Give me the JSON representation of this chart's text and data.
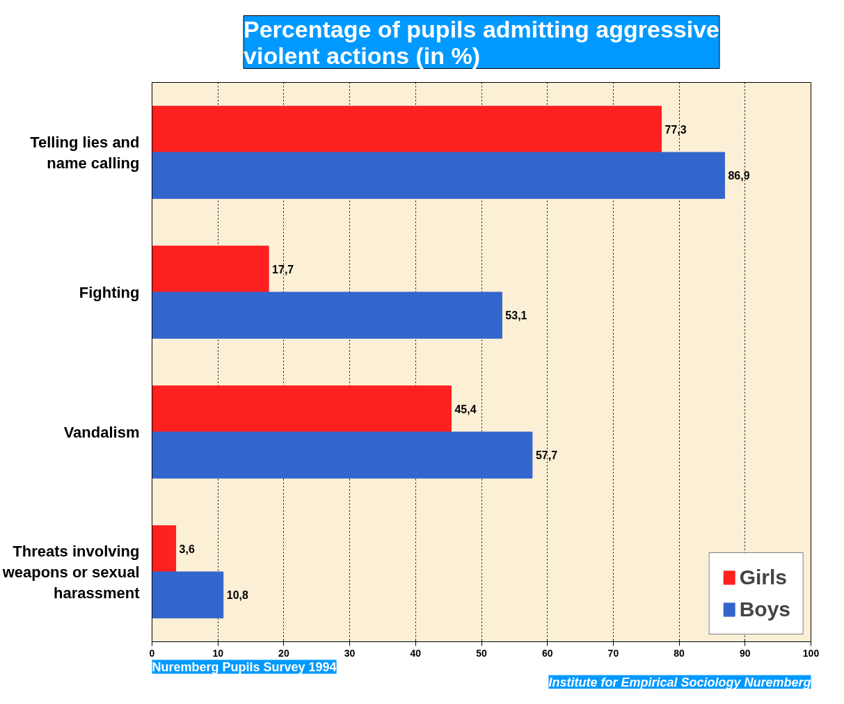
{
  "chart_data": {
    "type": "bar",
    "orientation": "horizontal",
    "title": "Percentage of pupils admitting aggressive violent actions (in %)",
    "categories": [
      "Telling lies and name calling",
      "Fighting",
      "Vandalism",
      "Threats involving weapons or sexual harassment"
    ],
    "series": [
      {
        "name": "Girls",
        "color": "#ff2020",
        "values": [
          77.3,
          17.7,
          45.4,
          3.6
        ],
        "value_labels": [
          "77,3",
          "17,7",
          "45,4",
          "3,6"
        ]
      },
      {
        "name": "Boys",
        "color": "#3366cc",
        "values": [
          86.9,
          53.1,
          57.7,
          10.8
        ],
        "value_labels": [
          "86,9",
          "53,1",
          "57,7",
          "10,8"
        ]
      }
    ],
    "xlim": [
      0,
      100
    ],
    "xticks": [
      0,
      10,
      20,
      30,
      40,
      50,
      60,
      70,
      80,
      90,
      100
    ],
    "grid": "x",
    "legend": "bottom right",
    "annotations": [
      "Nuremberg Pupils Survey 1994",
      "Institute for Empirical Sociology Nuremberg"
    ]
  }
}
